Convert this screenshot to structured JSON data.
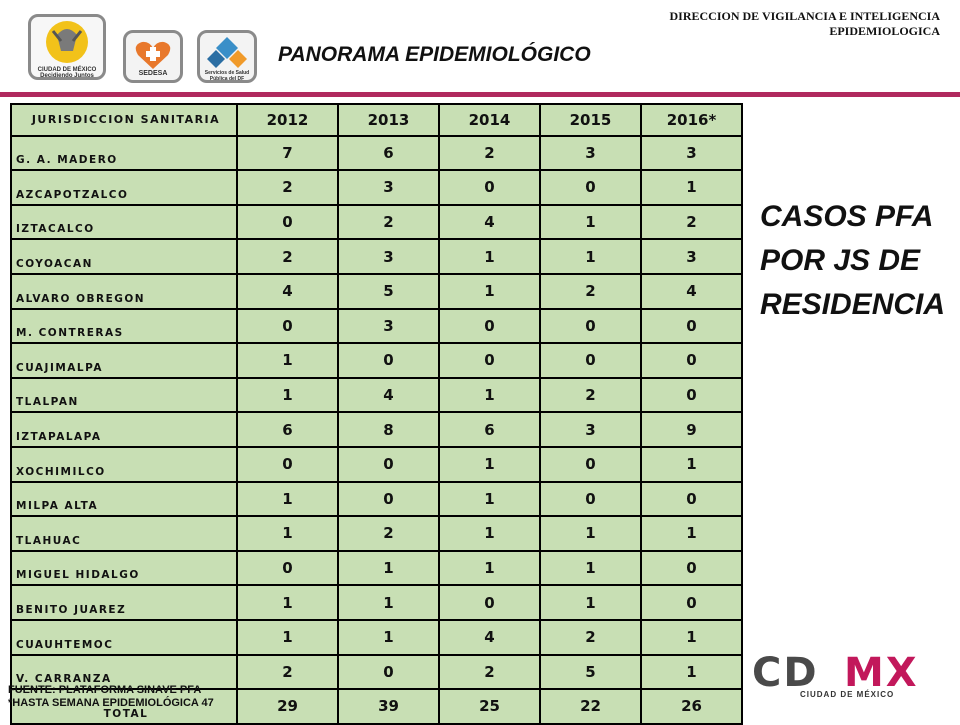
{
  "header": {
    "org_title": "DIRECCION DE VIGILANCIA E INTELIGENCIA EPIDEMIOLOGICA",
    "page_title": "PANORAMA EPIDEMIOLÓGICO"
  },
  "logos": {
    "cdmx_gov_caption": "CIUDAD DE MÉXICO Decidiendo Juntos",
    "sedesa_caption": "SEDESA",
    "servicios_caption": "Servicios de Salud Pública del DF"
  },
  "table": {
    "headers": [
      "JURISDICCION SANITARIA",
      "2012",
      "2013",
      "2014",
      "2015",
      "2016*"
    ],
    "rows": [
      {
        "name": "G. A. MADERO",
        "values": [
          "7",
          "6",
          "2",
          "3",
          "3"
        ]
      },
      {
        "name": "AZCAPOTZALCO",
        "values": [
          "2",
          "3",
          "0",
          "0",
          "1"
        ]
      },
      {
        "name": "IZTACALCO",
        "values": [
          "0",
          "2",
          "4",
          "1",
          "2"
        ]
      },
      {
        "name": "COYOACAN",
        "values": [
          "2",
          "3",
          "1",
          "1",
          "3"
        ]
      },
      {
        "name": "ALVARO OBREGON",
        "values": [
          "4",
          "5",
          "1",
          "2",
          "4"
        ]
      },
      {
        "name": "M. CONTRERAS",
        "values": [
          "0",
          "3",
          "0",
          "0",
          "0"
        ]
      },
      {
        "name": "CUAJIMALPA",
        "values": [
          "1",
          "0",
          "0",
          "0",
          "0"
        ]
      },
      {
        "name": "TLALPAN",
        "values": [
          "1",
          "4",
          "1",
          "2",
          "0"
        ]
      },
      {
        "name": "IZTAPALAPA",
        "values": [
          "6",
          "8",
          "6",
          "3",
          "9"
        ]
      },
      {
        "name": "XOCHIMILCO",
        "values": [
          "0",
          "0",
          "1",
          "0",
          "1"
        ]
      },
      {
        "name": "MILPA ALTA",
        "values": [
          "1",
          "0",
          "1",
          "0",
          "0"
        ]
      },
      {
        "name": "TLAHUAC",
        "values": [
          "1",
          "2",
          "1",
          "1",
          "1"
        ]
      },
      {
        "name": "MIGUEL HIDALGO",
        "values": [
          "0",
          "1",
          "1",
          "1",
          "0"
        ]
      },
      {
        "name": "BENITO JUAREZ",
        "values": [
          "1",
          "1",
          "0",
          "1",
          "0"
        ]
      },
      {
        "name": "CUAUHTEMOC",
        "values": [
          "1",
          "1",
          "4",
          "2",
          "1"
        ]
      },
      {
        "name": "V. CARRANZA",
        "values": [
          "2",
          "0",
          "2",
          "5",
          "1"
        ]
      }
    ],
    "total": {
      "name": "TOTAL",
      "values": [
        "29",
        "39",
        "25",
        "22",
        "26"
      ]
    }
  },
  "side_title": {
    "line1": "CASOS PFA",
    "line2": "POR JS DE",
    "line3": "RESIDENCIA"
  },
  "footer": {
    "source": "FUENTE: PLATAFORMA  SINAVE PFA",
    "note": "*HASTA SEMANA EPIDEMIOLÓGICA 47"
  },
  "brand": {
    "wordmark": "CDMX",
    "subtitle": "CIUDAD DE MÉXICO"
  },
  "colors": {
    "accent_line": "#b0295e",
    "table_fill": "#c8dfb4",
    "cdmx_gray": "#4a4a4a",
    "cdmx_pink": "#c2185b"
  }
}
